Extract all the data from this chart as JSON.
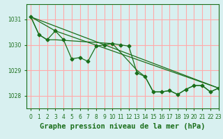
{
  "bg_color": "#d8f0f0",
  "plot_bg_color": "#d8f0f0",
  "grid_color": "#ffaaaa",
  "line_color": "#1a6e1a",
  "marker_color": "#1a6e1a",
  "xlabel": "Graphe pression niveau de la mer (hPa)",
  "xlabel_fontsize": 7.5,
  "ylim": [
    1027.5,
    1031.6
  ],
  "xlim": [
    -0.5,
    23
  ],
  "yticks": [
    1028,
    1029,
    1030,
    1031
  ],
  "xticks": [
    0,
    1,
    2,
    3,
    4,
    5,
    6,
    7,
    8,
    9,
    10,
    11,
    12,
    13,
    14,
    15,
    16,
    17,
    18,
    19,
    20,
    21,
    22,
    23
  ],
  "series1_x": [
    0,
    1,
    2,
    3,
    4,
    5,
    6,
    7,
    8,
    9,
    10,
    11,
    12,
    13,
    14,
    15,
    16,
    17,
    18,
    19,
    20,
    21,
    22,
    23
  ],
  "series1_y": [
    1031.1,
    1030.4,
    1030.2,
    1030.55,
    1030.2,
    1029.45,
    1029.5,
    1029.35,
    1029.95,
    1030.0,
    1030.05,
    1030.0,
    1029.95,
    1028.9,
    1028.75,
    1028.15,
    1028.15,
    1028.2,
    1028.05,
    1028.25,
    1028.4,
    1028.4,
    1028.15,
    1028.3
  ],
  "series2_x": [
    0,
    1,
    2,
    3,
    10,
    13,
    14,
    15,
    16,
    17,
    18,
    19,
    20,
    21,
    22,
    23
  ],
  "series2_y": [
    1031.1,
    1030.4,
    1030.2,
    1030.2,
    1030.05,
    1029.0,
    1028.75,
    1028.15,
    1028.15,
    1028.2,
    1028.05,
    1028.25,
    1028.4,
    1028.4,
    1028.15,
    1028.3
  ],
  "series3_x": [
    0,
    3,
    23
  ],
  "series3_y": [
    1031.1,
    1030.55,
    1028.3
  ],
  "series4_x": [
    0,
    23
  ],
  "series4_y": [
    1031.1,
    1028.3
  ]
}
